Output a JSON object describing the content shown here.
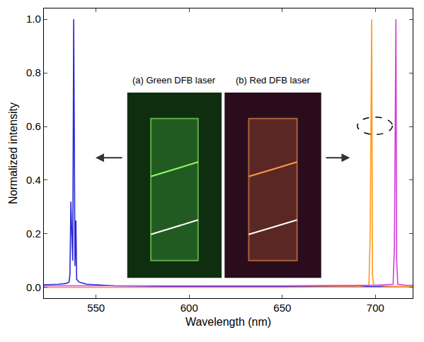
{
  "chart_data": {
    "type": "line",
    "x_label": "Wavelength (nm)",
    "y_label": "Normalized intensity",
    "xlim": [
      522,
      720
    ],
    "xticks": [
      550,
      600,
      650,
      700
    ],
    "ylim": [
      -0.04,
      1.04
    ],
    "yticks": [
      {
        "value": 0,
        "label": "0.0"
      },
      {
        "value": 0.2,
        "label": "0.2"
      },
      {
        "value": 0.4,
        "label": "0.4"
      },
      {
        "value": 0.6,
        "label": "0.6"
      },
      {
        "value": 0.8,
        "label": "0.8"
      },
      {
        "value": 1,
        "label": "1.0"
      }
    ],
    "grid": false,
    "annotations": [
      "(a) Green DFB laser",
      "(b) Red DFB laser"
    ],
    "series": [
      {
        "color": "#2a2ad8",
        "x": [
          522,
          530,
          534,
          535.5,
          536,
          536.5,
          537,
          537.5,
          538,
          538.3,
          538.7,
          539.2,
          539.6,
          541,
          545,
          560,
          600,
          650,
          700,
          720
        ],
        "values": [
          0.01,
          0.012,
          0.015,
          0.02,
          0.05,
          0.32,
          0.2,
          0.1,
          1.0,
          0.5,
          0.08,
          0.25,
          0.03,
          0.02,
          0.012,
          0.006,
          0.003,
          0.003,
          0.003,
          0.003
        ]
      },
      {
        "color": "#ff9a1a",
        "x": [
          522,
          560,
          600,
          650,
          690,
          696.5,
          697.2,
          697.6,
          698,
          698.4,
          699,
          705,
          720
        ],
        "values": [
          0.0,
          0.0,
          0.0,
          0.0,
          0.003,
          0.008,
          0.2,
          0.6,
          1.0,
          0.05,
          0.01,
          0.005,
          0.003
        ]
      },
      {
        "color": "#d63cd6",
        "x": [
          522,
          560,
          600,
          650,
          700,
          709.5,
          710.2,
          710.6,
          711,
          711.4,
          712,
          716,
          720
        ],
        "values": [
          0.006,
          0.006,
          0.006,
          0.006,
          0.008,
          0.012,
          0.15,
          0.6,
          1.0,
          0.1,
          0.012,
          0.008,
          0.008
        ]
      }
    ]
  }
}
